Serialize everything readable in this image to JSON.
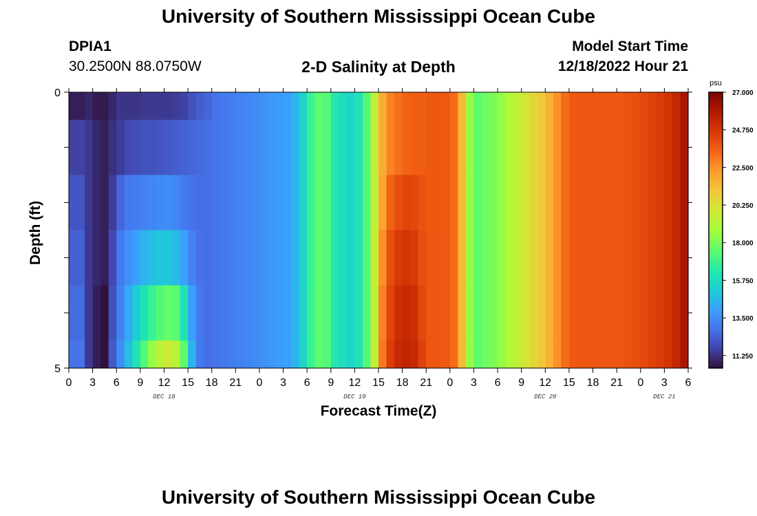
{
  "header": {
    "title": "University of Southern Mississippi Ocean Cube",
    "station_id": "DPIA1",
    "coordinates": "30.2500N  88.0750W",
    "plot_title": "2-D Salinity at Depth",
    "model_start_label": "Model Start Time",
    "model_start_value": "12/18/2022 Hour 21"
  },
  "footer": {
    "title": "University of Southern Mississippi Ocean Cube"
  },
  "chart_data": {
    "type": "heatmap",
    "title": "2-D Salinity at Depth",
    "xlabel": "Forecast Time(Z)",
    "ylabel": "Depth (ft)",
    "x_tick_labels": [
      "0",
      "3",
      "6",
      "9",
      "12",
      "15",
      "18",
      "21",
      "0",
      "3",
      "6",
      "9",
      "12",
      "15",
      "18",
      "21",
      "0",
      "3",
      "6",
      "9",
      "12",
      "15",
      "18",
      "21",
      "0",
      "3",
      "6"
    ],
    "date_labels": [
      {
        "label": "DEC 18",
        "hour": 12
      },
      {
        "label": "DEC 19",
        "hour": 36
      },
      {
        "label": "DEC 20",
        "hour": 60
      },
      {
        "label": "DEC 21",
        "hour": 75
      }
    ],
    "xlim": [
      0,
      78
    ],
    "y_tick_labels": [
      "0",
      "5"
    ],
    "ylim": [
      0,
      5
    ],
    "colorbar": {
      "unit": "psu",
      "min": 10.5,
      "max": 27.0,
      "tick_labels": [
        "27.000",
        "24.750",
        "22.500",
        "20.250",
        "18.000",
        "15.750",
        "13.500",
        "11.250"
      ],
      "colors": [
        "#30123b",
        "#4145ab",
        "#4675ed",
        "#39a2fc",
        "#1bcfd4",
        "#24eca6",
        "#61fc6c",
        "#a4fc3b",
        "#d1e834",
        "#f3c63a",
        "#fe9b2d",
        "#f36315",
        "#d93806",
        "#b11901",
        "#7a0402"
      ]
    },
    "depth_layers": [
      {
        "depth_range": [
          0,
          0.5
        ],
        "values": [
          10.8,
          10.8,
          11.0,
          10.7,
          10.7,
          11.0,
          11.3,
          11.3,
          11.3,
          11.4,
          11.4,
          11.4,
          11.4,
          11.5,
          11.6,
          12.0,
          12.3,
          12.5,
          12.8,
          13.0,
          13.1,
          13.2,
          13.3,
          13.4,
          13.6,
          13.8,
          13.9,
          14.0,
          14.5,
          15.5,
          16.8,
          17.5,
          17.3,
          16.2,
          15.8,
          15.5,
          16.0,
          17.3,
          19.5,
          21.8,
          22.8,
          23.2,
          23.5,
          23.6,
          23.6,
          23.7,
          23.8,
          23.7,
          23.3,
          21.5,
          18.5,
          17.5,
          17.8,
          18.0,
          18.5,
          19.0,
          19.5,
          20.0,
          20.5,
          21.0,
          21.7,
          22.5,
          23.3,
          23.7,
          23.8,
          23.8,
          23.8,
          23.8,
          23.8,
          23.8,
          23.9,
          24.0,
          24.2,
          24.4,
          24.6,
          24.8,
          25.3,
          26.0
        ]
      },
      {
        "depth_range": [
          0.5,
          1.5
        ],
        "values": [
          11.6,
          11.6,
          11.4,
          11.0,
          10.8,
          11.2,
          11.5,
          11.8,
          11.9,
          12.0,
          12.0,
          12.1,
          12.2,
          12.3,
          12.4,
          12.5,
          12.6,
          12.7,
          12.8,
          13.0,
          13.1,
          13.2,
          13.3,
          13.4,
          13.6,
          13.8,
          13.9,
          14.0,
          14.5,
          15.5,
          16.8,
          17.5,
          17.3,
          16.2,
          15.8,
          15.5,
          16.0,
          17.3,
          19.5,
          21.8,
          22.8,
          23.2,
          23.5,
          23.6,
          23.6,
          23.7,
          23.8,
          23.7,
          23.3,
          21.5,
          18.5,
          17.5,
          17.8,
          18.0,
          18.5,
          19.0,
          19.5,
          20.0,
          20.5,
          21.0,
          21.7,
          22.5,
          23.3,
          23.7,
          23.8,
          23.8,
          23.8,
          23.8,
          23.8,
          23.8,
          23.9,
          24.0,
          24.2,
          24.4,
          24.6,
          24.8,
          25.3,
          26.0
        ]
      },
      {
        "depth_range": [
          1.5,
          2.5
        ],
        "values": [
          12.1,
          12.1,
          11.4,
          11.0,
          10.8,
          11.5,
          12.5,
          13.0,
          13.1,
          13.2,
          13.3,
          13.4,
          13.5,
          13.3,
          13.0,
          12.8,
          12.7,
          12.7,
          12.8,
          13.0,
          13.1,
          13.2,
          13.3,
          13.4,
          13.6,
          13.8,
          13.9,
          14.0,
          14.5,
          15.5,
          16.8,
          17.5,
          17.3,
          16.2,
          15.8,
          15.5,
          16.0,
          17.3,
          19.5,
          22.0,
          23.5,
          24.0,
          24.3,
          24.2,
          23.9,
          23.7,
          23.8,
          23.7,
          23.3,
          21.5,
          18.5,
          17.5,
          17.8,
          18.0,
          18.5,
          19.0,
          19.5,
          20.0,
          20.5,
          21.0,
          21.7,
          22.5,
          23.3,
          23.7,
          23.8,
          23.8,
          23.8,
          23.8,
          23.8,
          23.8,
          23.9,
          24.0,
          24.2,
          24.4,
          24.6,
          24.8,
          25.3,
          26.0
        ]
      },
      {
        "depth_range": [
          2.5,
          3.5
        ],
        "values": [
          12.4,
          12.4,
          11.4,
          11.0,
          10.8,
          11.8,
          13.0,
          13.6,
          14.0,
          14.5,
          14.8,
          15.0,
          15.0,
          14.7,
          14.0,
          13.2,
          12.8,
          12.7,
          12.8,
          13.0,
          13.1,
          13.2,
          13.3,
          13.4,
          13.6,
          13.8,
          13.9,
          14.0,
          14.5,
          15.5,
          16.8,
          17.5,
          17.3,
          16.2,
          15.8,
          15.5,
          16.0,
          17.3,
          19.5,
          22.5,
          24.0,
          24.6,
          24.8,
          24.6,
          24.0,
          23.8,
          23.8,
          23.7,
          23.3,
          21.5,
          18.5,
          17.5,
          17.8,
          18.0,
          18.5,
          19.0,
          19.5,
          20.0,
          20.5,
          21.0,
          21.7,
          22.5,
          23.3,
          23.7,
          23.8,
          23.8,
          23.8,
          23.8,
          23.8,
          23.8,
          23.9,
          24.0,
          24.2,
          24.4,
          24.6,
          24.8,
          25.3,
          26.0
        ]
      },
      {
        "depth_range": [
          3.5,
          4.5
        ],
        "values": [
          12.6,
          12.6,
          11.4,
          10.8,
          10.5,
          12.0,
          13.2,
          14.2,
          15.2,
          16.0,
          16.8,
          17.3,
          17.6,
          17.4,
          16.0,
          14.0,
          13.0,
          12.7,
          12.8,
          13.0,
          13.1,
          13.2,
          13.3,
          13.4,
          13.6,
          13.8,
          13.9,
          14.0,
          14.5,
          15.5,
          16.8,
          17.5,
          17.3,
          16.2,
          15.8,
          15.5,
          16.0,
          17.3,
          19.5,
          22.8,
          24.3,
          25.0,
          25.2,
          25.0,
          24.2,
          23.8,
          23.8,
          23.7,
          23.3,
          21.5,
          18.5,
          17.5,
          17.8,
          18.0,
          18.5,
          19.0,
          19.5,
          20.0,
          20.5,
          21.0,
          21.7,
          22.5,
          23.3,
          23.7,
          23.8,
          23.8,
          23.8,
          23.8,
          23.8,
          23.8,
          23.9,
          24.0,
          24.2,
          24.4,
          24.6,
          24.8,
          25.3,
          26.0
        ]
      },
      {
        "depth_range": [
          4.5,
          5.0
        ],
        "values": [
          12.8,
          12.8,
          11.4,
          10.8,
          10.5,
          12.2,
          13.5,
          14.8,
          16.0,
          17.3,
          18.5,
          19.3,
          19.8,
          19.3,
          17.5,
          14.5,
          13.0,
          12.7,
          12.8,
          13.0,
          13.1,
          13.2,
          13.3,
          13.4,
          13.6,
          13.8,
          13.9,
          14.0,
          14.5,
          15.5,
          16.8,
          17.5,
          17.3,
          16.2,
          15.8,
          15.5,
          16.0,
          17.3,
          19.5,
          23.0,
          24.5,
          25.2,
          25.4,
          25.2,
          24.4,
          23.8,
          23.8,
          23.7,
          23.3,
          21.5,
          18.5,
          17.5,
          17.8,
          18.0,
          18.5,
          19.0,
          19.5,
          20.0,
          20.5,
          21.0,
          21.7,
          22.5,
          23.3,
          23.7,
          23.8,
          23.8,
          23.8,
          23.8,
          23.8,
          23.8,
          23.9,
          24.0,
          24.2,
          24.4,
          24.6,
          24.8,
          25.3,
          26.0
        ]
      }
    ]
  }
}
